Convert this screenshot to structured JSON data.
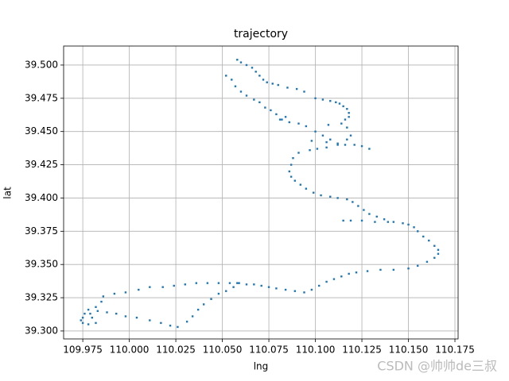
{
  "chart_data": {
    "type": "scatter",
    "title": "trajectory",
    "x_label": "lng",
    "y_label": "lat",
    "watermark": "CSDN @帅帅de三叔",
    "grid": true,
    "xlim": [
      109.9647,
      110.1767
    ],
    "ylim": [
      39.294,
      39.5143
    ],
    "xticks": [
      109.975,
      {
        "value": 110.0,
        "label": "110.000"
      },
      110.025,
      {
        "value": 110.05,
        "label": "110.050"
      },
      110.075,
      {
        "value": 110.1,
        "label": "110.100"
      },
      110.125,
      {
        "value": 110.15,
        "label": "110.150"
      },
      110.175
    ],
    "yticks": [
      {
        "value": 39.3,
        "label": "39.300"
      },
      39.325,
      {
        "value": 39.35,
        "label": "39.350"
      },
      39.375,
      {
        "value": 39.4,
        "label": "39.400"
      },
      39.425,
      {
        "value": 39.45,
        "label": "39.450"
      },
      39.475,
      {
        "value": 39.5,
        "label": "39.500"
      }
    ],
    "series": [
      {
        "color": "#1f77b4",
        "x": [
          110.058,
          110.06,
          110.063,
          110.066,
          110.068,
          110.07,
          110.072,
          110.074,
          110.077,
          110.08,
          110.085,
          110.09,
          110.094,
          110.1,
          110.104,
          110.108,
          110.111,
          110.113,
          110.115,
          110.117,
          110.118,
          110.118,
          110.116,
          110.114,
          110.117,
          110.119,
          110.117,
          110.112,
          110.106,
          110.101,
          110.097,
          110.091,
          110.088,
          110.087,
          110.086,
          110.087,
          110.089,
          110.092,
          110.095,
          110.099,
          110.103,
          110.108,
          110.112,
          110.117,
          110.12,
          110.123,
          110.126,
          110.129,
          110.133,
          110.137,
          110.142,
          110.147,
          110.15,
          110.153,
          110.155,
          110.158,
          110.161,
          110.164,
          110.166,
          110.166,
          110.164,
          110.16,
          110.155,
          110.15,
          110.142,
          110.135,
          110.128,
          110.122,
          110.118,
          110.114,
          110.11,
          110.106,
          110.102,
          110.098,
          110.094,
          110.089,
          110.084,
          110.079,
          110.075,
          110.071,
          110.067,
          110.063,
          110.059,
          110.054,
          110.048,
          110.042,
          110.036,
          110.03,
          110.024,
          110.018,
          110.011,
          110.005,
          109.998,
          109.992,
          109.986,
          109.985,
          109.982,
          109.978,
          109.976,
          109.975,
          109.974,
          109.975,
          109.978,
          109.982,
          109.98,
          109.979,
          109.983,
          109.988,
          109.993,
          109.998,
          110.004,
          110.011,
          110.017,
          110.022,
          110.026,
          110.031,
          110.034,
          110.037,
          110.04,
          110.044,
          110.048,
          110.052,
          110.056,
          110.058,
          110.052,
          110.055,
          110.057,
          110.06,
          110.063,
          110.067,
          110.07,
          110.073,
          110.076,
          110.079,
          110.082,
          110.086,
          110.091,
          110.095,
          110.1,
          110.104,
          110.108,
          110.112,
          110.116,
          110.121,
          110.125,
          110.129,
          110.106,
          110.107,
          110.115,
          110.119,
          110.125,
          110.132,
          110.139,
          110.084,
          110.081,
          110.098
        ],
        "y": [
          39.504,
          39.502,
          39.5,
          39.498,
          39.495,
          39.492,
          39.489,
          39.487,
          39.486,
          39.485,
          39.483,
          39.482,
          39.48,
          39.475,
          39.474,
          39.473,
          39.472,
          39.471,
          39.469,
          39.467,
          39.464,
          39.461,
          39.459,
          39.456,
          39.453,
          39.447,
          39.444,
          39.44,
          39.438,
          39.437,
          39.436,
          39.434,
          39.43,
          39.425,
          39.42,
          39.416,
          39.413,
          39.41,
          39.407,
          39.404,
          39.402,
          39.401,
          39.4,
          39.399,
          39.397,
          39.394,
          39.391,
          39.388,
          39.386,
          39.384,
          39.382,
          39.381,
          39.38,
          39.378,
          39.375,
          39.371,
          39.368,
          39.364,
          39.361,
          39.358,
          39.355,
          39.352,
          39.349,
          39.347,
          39.346,
          39.346,
          39.345,
          39.344,
          39.343,
          39.341,
          39.339,
          39.337,
          39.334,
          39.331,
          39.329,
          39.33,
          39.331,
          39.332,
          39.333,
          39.334,
          39.335,
          39.335,
          39.336,
          39.336,
          39.336,
          39.336,
          39.336,
          39.335,
          39.334,
          39.333,
          39.333,
          39.331,
          39.329,
          39.328,
          39.326,
          39.322,
          39.318,
          39.316,
          39.313,
          39.31,
          39.308,
          39.306,
          39.305,
          39.306,
          39.31,
          39.313,
          39.315,
          39.314,
          39.313,
          39.311,
          39.31,
          39.308,
          39.306,
          39.304,
          39.303,
          39.307,
          39.311,
          39.316,
          39.32,
          39.324,
          39.328,
          39.33,
          39.333,
          39.336,
          39.492,
          39.489,
          39.484,
          39.48,
          39.477,
          39.474,
          39.472,
          39.468,
          39.466,
          39.463,
          39.459,
          39.457,
          39.456,
          39.454,
          39.45,
          39.447,
          39.444,
          39.441,
          39.44,
          39.44,
          39.439,
          39.437,
          39.442,
          39.455,
          39.383,
          39.383,
          39.383,
          39.382,
          39.382,
          39.461,
          39.459,
          39.443
        ]
      }
    ]
  }
}
